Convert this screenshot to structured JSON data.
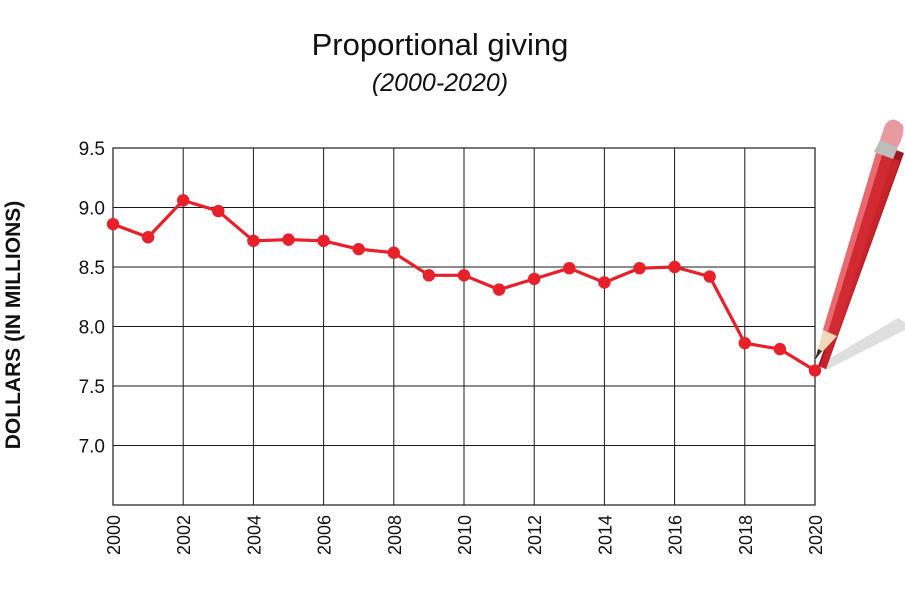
{
  "chart_data": {
    "type": "line",
    "title": "Proportional giving",
    "subtitle": "(2000-2020)",
    "xlabel": "",
    "ylabel": "DOLLARS (IN MILLIONS)",
    "ylim": [
      6.5,
      9.5
    ],
    "xlim": [
      2000,
      2020
    ],
    "yticks": [
      "9.5",
      "9.0",
      "8.5",
      "8.0",
      "7.5",
      "7.0"
    ],
    "xticks": [
      "2000",
      "2002",
      "2004",
      "2006",
      "2008",
      "2010",
      "2012",
      "2014",
      "2016",
      "2018",
      "2020"
    ],
    "grid": true,
    "x": [
      2000,
      2001,
      2002,
      2003,
      2004,
      2005,
      2006,
      2007,
      2008,
      2009,
      2010,
      2011,
      2012,
      2013,
      2014,
      2015,
      2016,
      2017,
      2018,
      2019,
      2020
    ],
    "series": [
      {
        "values": [
          8.86,
          8.75,
          9.06,
          8.97,
          8.72,
          8.73,
          8.72,
          8.65,
          8.62,
          8.43,
          8.43,
          8.31,
          8.4,
          8.49,
          8.37,
          8.49,
          8.5,
          8.42,
          7.86,
          7.81,
          7.63
        ]
      }
    ],
    "colors": {
      "line": "#e8202a",
      "grid": "#1a1a1a",
      "pencil": "#c8232c"
    }
  },
  "decoration": {
    "pencil": "pencil-illustration"
  }
}
